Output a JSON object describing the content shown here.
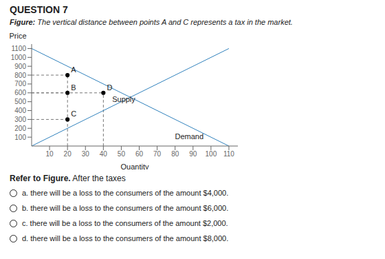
{
  "chart_data": {
    "type": "line",
    "title": "QUESTION 7",
    "subtitle": "Figure: The vertical distance between points A and C represents a tax in the market.",
    "xlabel": "Quantity",
    "ylabel": "Price",
    "xlim": [
      0,
      115
    ],
    "xticks": [
      10,
      20,
      30,
      40,
      50,
      60,
      70,
      80,
      90,
      100,
      110
    ],
    "ylim": [
      0,
      1150
    ],
    "yticks": [
      100,
      200,
      300,
      400,
      500,
      600,
      700,
      800,
      900,
      1000,
      1100
    ],
    "grid": false,
    "series": [
      {
        "name": "Supply",
        "x": [
          0,
          110
        ],
        "values": [
          0,
          1100
        ],
        "label_x": 43,
        "label_y": 530
      },
      {
        "name": "Demand",
        "x": [
          0,
          110
        ],
        "values": [
          1100,
          0
        ],
        "label_x": 78,
        "label_y": 105
      }
    ],
    "guides": [
      {
        "x": [
          0,
          20
        ],
        "values": [
          800,
          800
        ],
        "line_style": "dashed"
      },
      {
        "x": [
          0,
          20
        ],
        "values": [
          600,
          600
        ],
        "line_style": "dashed"
      },
      {
        "x": [
          0,
          20
        ],
        "values": [
          300,
          300
        ],
        "line_style": "dashed"
      },
      {
        "x": [
          0,
          40
        ],
        "values": [
          600,
          600
        ],
        "line_style": "dashed"
      },
      {
        "x": [
          20,
          20
        ],
        "values": [
          0,
          800
        ],
        "line_style": "dashed"
      },
      {
        "x": [
          40,
          40
        ],
        "values": [
          0,
          600
        ],
        "line_style": "dashed"
      }
    ],
    "points": [
      {
        "label": "A",
        "x": 20,
        "y": 800
      },
      {
        "label": "B",
        "x": 20,
        "y": 600
      },
      {
        "label": "C",
        "x": 20,
        "y": 300
      },
      {
        "label": "D",
        "x": 40,
        "y": 600
      }
    ],
    "question": {
      "bold": "Refer to Figure.",
      "text": "After the taxes"
    },
    "options": [
      "a. there will be a loss to the consumers of the amount $4,000.",
      "b. there will be a loss to the consumers of the amount $6,000.",
      "c. there will be a loss to the consumers of the amount $2,000.",
      "d. there will be a loss to the consumers of the amount $8,000."
    ]
  }
}
